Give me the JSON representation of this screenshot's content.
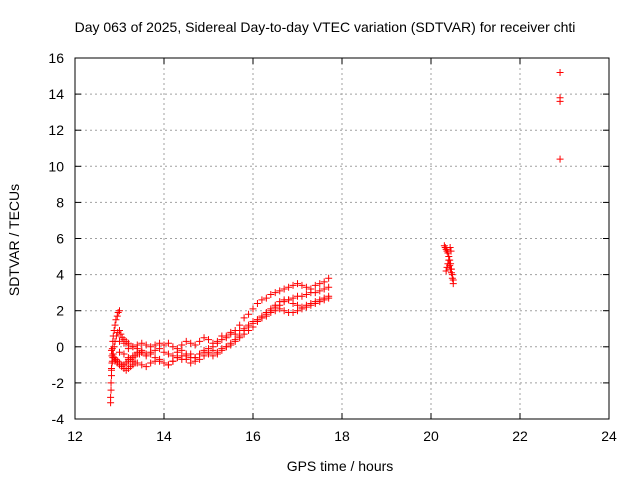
{
  "chart_data": {
    "type": "scatter",
    "title": "Day 063 of 2025, Sidereal Day-to-day VTEC variation (SDTVAR) for receiver chti",
    "xlabel": "GPS time / hours",
    "ylabel": "SDTVAR / TECUs",
    "xlim": [
      12,
      24
    ],
    "ylim": [
      -4,
      16
    ],
    "xticks": [
      "12",
      "14",
      "16",
      "18",
      "20",
      "22",
      "24"
    ],
    "yticks": [
      "-4",
      "-2",
      "0",
      "2",
      "4",
      "6",
      "8",
      "10",
      "12",
      "14",
      "16"
    ],
    "grid": true,
    "marker": "+",
    "series": [
      {
        "name": "SDTVAR",
        "color": "#ff0000",
        "x": [
          12.8,
          12.8,
          12.81,
          12.81,
          12.82,
          12.82,
          12.83,
          12.83,
          12.84,
          12.85,
          12.86,
          12.88,
          12.9,
          12.92,
          12.95,
          12.97,
          13.0,
          12.82,
          12.84,
          12.86,
          12.88,
          12.9,
          12.93,
          12.96,
          13.0,
          13.03,
          13.06,
          13.1,
          13.15,
          13.2,
          12.82,
          12.85,
          12.88,
          12.92,
          12.96,
          13.0,
          13.05,
          13.1,
          13.15,
          13.2,
          13.25,
          13.3,
          13.35,
          13.4,
          13.45,
          13.5,
          12.85,
          12.9,
          12.95,
          13.0,
          13.05,
          13.1,
          13.15,
          13.2,
          13.25,
          13.3,
          13.35,
          13.0,
          13.1,
          13.2,
          13.3,
          13.4,
          13.5,
          13.6,
          13.7,
          13.8,
          13.9,
          14.0,
          14.1,
          14.2,
          14.3,
          14.4,
          14.5,
          14.6,
          14.7,
          14.8,
          14.9,
          15.0,
          15.1,
          15.2,
          15.3,
          15.4,
          15.5,
          15.6,
          15.7,
          15.8,
          15.9,
          16.0,
          16.1,
          16.2,
          16.3,
          16.4,
          16.5,
          16.6,
          16.7,
          16.8,
          16.9,
          17.0,
          17.1,
          17.2,
          17.3,
          17.4,
          17.5,
          17.6,
          17.7,
          13.0,
          13.1,
          13.2,
          13.3,
          13.4,
          13.5,
          13.6,
          13.7,
          13.8,
          13.9,
          14.0,
          14.1,
          14.2,
          14.3,
          14.4,
          14.5,
          14.6,
          14.7,
          14.8,
          14.9,
          15.0,
          15.1,
          15.2,
          15.3,
          15.4,
          15.5,
          15.6,
          15.7,
          15.8,
          15.9,
          16.0,
          16.1,
          16.2,
          16.3,
          16.4,
          16.5,
          16.6,
          16.7,
          16.8,
          16.9,
          17.0,
          17.1,
          17.2,
          17.3,
          17.4,
          17.5,
          17.6,
          17.7,
          13.1,
          13.2,
          13.3,
          13.4,
          13.5,
          13.6,
          13.7,
          13.8,
          13.9,
          14.0,
          14.1,
          14.2,
          14.3,
          14.4,
          14.5,
          14.6,
          14.7,
          14.8,
          14.9,
          15.0,
          15.1,
          15.2,
          15.3,
          15.4,
          15.5,
          15.6,
          15.7,
          15.8,
          15.9,
          16.0,
          16.1,
          16.2,
          16.3,
          16.4,
          16.5,
          16.6,
          16.7,
          16.8,
          16.9,
          17.0,
          17.1,
          17.2,
          17.3,
          17.4,
          17.5,
          17.6,
          17.7,
          13.2,
          13.3,
          13.4,
          13.5,
          13.6,
          13.7,
          13.8,
          13.9,
          14.0,
          14.1,
          14.2,
          14.3,
          14.4,
          14.5,
          14.6,
          14.7,
          14.8,
          14.9,
          15.0,
          15.1,
          15.2,
          15.3,
          15.4,
          15.5,
          15.6,
          15.7,
          15.8,
          15.9,
          16.0,
          16.1,
          16.2,
          16.3,
          16.4,
          16.5,
          16.6,
          16.7,
          16.8,
          16.9,
          17.0,
          17.1,
          17.2,
          17.3,
          17.4,
          17.5,
          17.6,
          17.7,
          20.3,
          20.32,
          20.34,
          20.36,
          20.38,
          20.4,
          20.42,
          20.44,
          20.46,
          20.48,
          20.5,
          20.34,
          20.36,
          20.38,
          20.4,
          20.42,
          20.44,
          20.46,
          20.48,
          20.5,
          20.45,
          20.43,
          22.9,
          22.9,
          22.9,
          22.9
        ],
        "y": [
          -3.1,
          -2.8,
          -2.4,
          -2.0,
          -1.6,
          -1.3,
          -0.9,
          -0.5,
          -0.1,
          0.3,
          0.6,
          0.9,
          1.2,
          1.5,
          1.7,
          1.9,
          2.0,
          -1.2,
          -0.8,
          -0.4,
          0.0,
          0.3,
          0.6,
          0.8,
          0.9,
          0.7,
          0.5,
          0.4,
          0.3,
          0.2,
          -0.2,
          -0.4,
          -0.6,
          -0.7,
          -0.8,
          -0.9,
          -1.0,
          -1.0,
          -0.9,
          -0.8,
          -0.7,
          -0.6,
          -0.5,
          -0.4,
          -0.4,
          -0.3,
          -0.6,
          -0.8,
          -0.9,
          -1.0,
          -1.1,
          -1.2,
          -1.3,
          -1.2,
          -1.1,
          -1.0,
          -0.9,
          0.3,
          0.2,
          0.1,
          0.0,
          0.1,
          0.2,
          0.1,
          0.0,
          0.1,
          0.2,
          0.1,
          0.2,
          0.0,
          -0.1,
          0.1,
          0.3,
          0.2,
          0.1,
          0.3,
          0.5,
          0.4,
          0.2,
          0.3,
          0.6,
          0.5,
          0.7,
          0.9,
          1.2,
          1.6,
          1.8,
          2.1,
          2.4,
          2.6,
          2.7,
          2.9,
          3.0,
          3.1,
          3.2,
          3.3,
          3.4,
          3.5,
          3.4,
          3.3,
          3.2,
          3.4,
          3.5,
          3.6,
          3.8,
          -0.3,
          -0.4,
          -0.6,
          -0.8,
          -0.9,
          -1.0,
          -1.1,
          -0.9,
          -0.8,
          -0.7,
          -0.9,
          -1.0,
          -0.8,
          -0.6,
          -0.7,
          -0.5,
          -0.4,
          -0.6,
          -0.4,
          -0.2,
          -0.3,
          -0.2,
          -0.4,
          -0.2,
          0.0,
          0.1,
          0.3,
          0.5,
          0.7,
          0.9,
          1.1,
          1.4,
          1.6,
          1.8,
          2.0,
          2.2,
          2.3,
          2.5,
          2.6,
          2.7,
          2.8,
          2.8,
          2.9,
          3.0,
          3.0,
          3.1,
          3.2,
          3.3,
          -1.0,
          -0.7,
          -0.5,
          -0.3,
          -0.2,
          -0.4,
          -0.3,
          -0.2,
          -0.1,
          -0.3,
          -0.4,
          -0.5,
          -0.3,
          -0.2,
          -0.4,
          -0.6,
          -0.8,
          -0.7,
          -0.5,
          -0.4,
          -0.5,
          -0.3,
          -0.1,
          0.0,
          0.2,
          0.4,
          0.6,
          0.9,
          1.1,
          1.3,
          1.5,
          1.7,
          1.9,
          2.1,
          2.3,
          2.5,
          2.6,
          2.6,
          2.4,
          2.3,
          2.2,
          2.3,
          2.4,
          2.5,
          2.6,
          2.7,
          2.8,
          -0.1,
          0.0,
          -0.1,
          -0.3,
          -0.5,
          -0.4,
          -0.6,
          -0.8,
          -0.9,
          -1.0,
          -0.8,
          -0.6,
          -0.5,
          -0.7,
          -0.9,
          -0.6,
          -0.4,
          -0.3,
          -0.1,
          0.0,
          0.2,
          0.4,
          0.6,
          0.8,
          0.7,
          0.9,
          1.0,
          1.2,
          1.4,
          1.5,
          1.6,
          1.7,
          1.9,
          2.0,
          2.1,
          2.0,
          1.9,
          1.9,
          2.0,
          2.1,
          2.2,
          2.3,
          2.4,
          2.5,
          2.6,
          2.7,
          5.6,
          5.5,
          5.4,
          5.3,
          5.2,
          5.0,
          4.8,
          4.6,
          4.3,
          4.0,
          3.7,
          4.2,
          4.4,
          4.6,
          4.8,
          4.5,
          4.3,
          4.1,
          3.8,
          3.5,
          5.3,
          5.5,
          15.2,
          13.8,
          13.6,
          10.4
        ]
      }
    ]
  }
}
